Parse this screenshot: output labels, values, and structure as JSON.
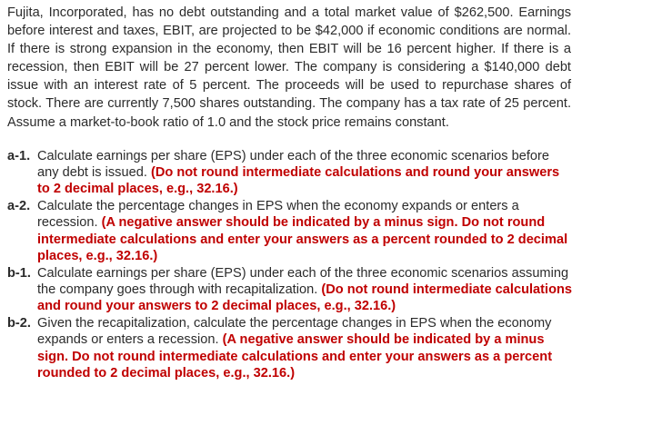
{
  "intro": "Fujita, Incorporated, has no debt outstanding and a total market value of $262,500. Earnings before interest and taxes, EBIT, are projected to be $42,000 if economic conditions are normal. If there is strong expansion in the economy, then EBIT will be 16 percent higher. If there is a recession, then EBIT will be 27 percent lower. The company is considering a $140,000 debt issue with an interest rate of 5 percent. The proceeds will be used to repurchase shares of stock. There are currently 7,500 shares outstanding. The company has a tax rate of 25 percent. Assume a market-to-book ratio of 1.0 and the stock price remains constant.",
  "questions": [
    {
      "label": "a-1.",
      "text": "Calculate earnings per share (EPS) under each of the three economic scenarios before any debt is issued.",
      "note": "(Do not round intermediate calculations and round your answers to 2 decimal places, e.g., 32.16.)"
    },
    {
      "label": "a-2.",
      "text": "Calculate the percentage changes in EPS when the economy expands or enters a recession.",
      "note": "(A negative answer should be indicated by a minus sign. Do not round intermediate calculations and enter your answers as a percent rounded to 2 decimal places, e.g., 32.16.)"
    },
    {
      "label": "b-1.",
      "text": "Calculate earnings per share (EPS) under each of the three economic scenarios assuming the company goes through with recapitalization.",
      "note": "(Do not round intermediate calculations and round your answers to 2 decimal places, e.g., 32.16.)"
    },
    {
      "label": "b-2.",
      "text": "Given the recapitalization, calculate the percentage changes in EPS when the economy expands or enters a recession.",
      "note": "(A negative answer should be indicated by a minus sign. Do not round intermediate calculations and enter your answers as a percent rounded to 2 decimal places, e.g., 32.16.)"
    }
  ]
}
